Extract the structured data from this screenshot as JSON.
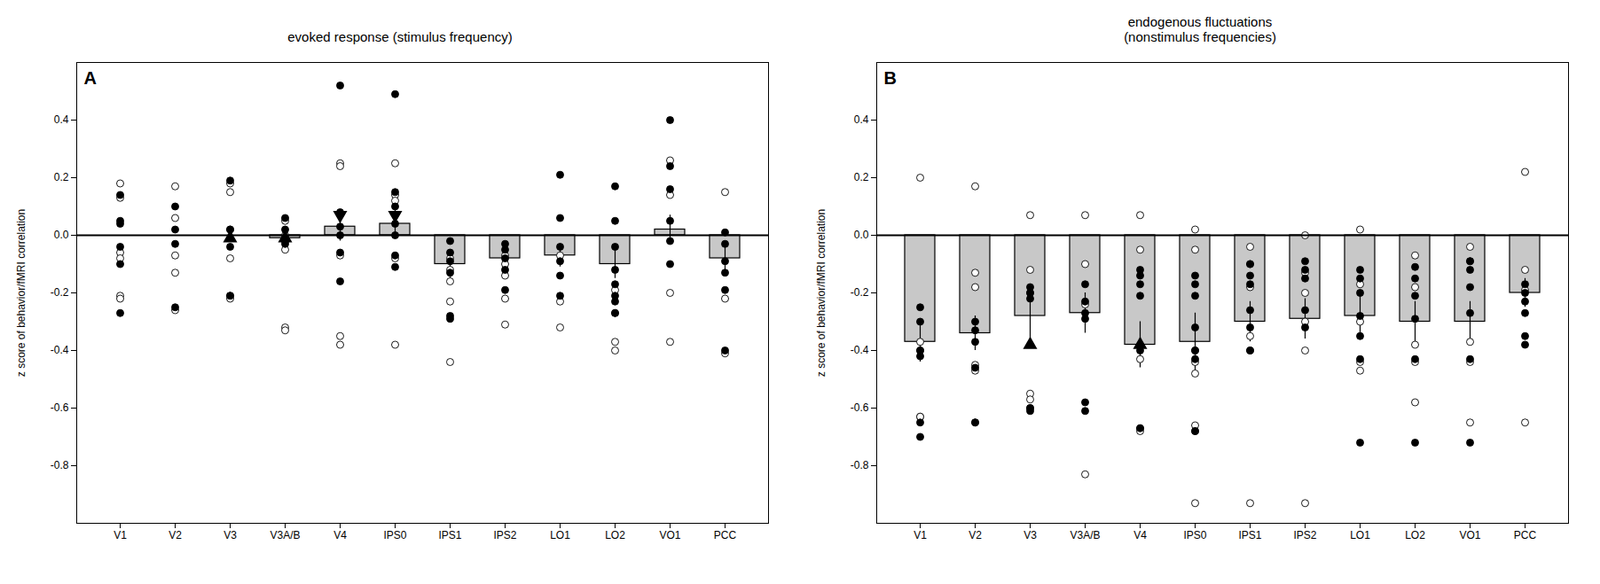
{
  "chart_data": [
    {
      "type": "bar",
      "title": "evoked response (stimulus frequency)",
      "annotations": [
        {
          "text": "A"
        }
      ],
      "y_label": "z score of behavior/fMRI correlation",
      "categories": [
        "V1",
        "V2",
        "V3",
        "V3A/B",
        "V4",
        "IPS0",
        "IPS1",
        "IPS2",
        "LO1",
        "LO2",
        "VO1",
        "PCC"
      ],
      "values": [
        null,
        null,
        null,
        -0.01,
        0.03,
        0.04,
        -0.1,
        -0.08,
        -0.07,
        -0.1,
        0.02,
        -0.08
      ],
      "errors": [
        null,
        null,
        null,
        0.04,
        0.05,
        0.05,
        0.05,
        0.04,
        0.04,
        0.05,
        0.05,
        0.04
      ],
      "color": "#c8c8c8",
      "ylim": [
        -1.0,
        0.6
      ],
      "yticks": [
        -0.8,
        -0.6,
        -0.4,
        -0.2,
        {
          "value": 0,
          "label": "0.0"
        },
        0.2,
        0.4
      ],
      "open_dots": {
        "V1": [
          0.18,
          0.13,
          -0.06,
          -0.08,
          -0.21,
          -0.22
        ],
        "V2": [
          0.17,
          0.06,
          -0.07,
          -0.13,
          -0.26
        ],
        "V3": [
          0.18,
          0.15,
          0.02,
          -0.08,
          -0.21,
          -0.22
        ],
        "V3A/B": [
          0.05,
          0.0,
          -0.05,
          -0.32,
          -0.33
        ],
        "V4": [
          0.25,
          0.24,
          -0.07,
          -0.35,
          -0.38
        ],
        "IPS0": [
          0.25,
          0.14,
          0.12,
          -0.08,
          -0.38
        ],
        "IPS1": [
          -0.08,
          -0.12,
          -0.16,
          -0.23,
          -0.44
        ],
        "IPS2": [
          -0.07,
          -0.1,
          -0.14,
          -0.22,
          -0.31
        ],
        "LO1": [
          -0.07,
          -0.23,
          -0.32
        ],
        "LO2": [
          -0.19,
          -0.27,
          -0.37,
          -0.4
        ],
        "VO1": [
          0.26,
          0.14,
          -0.2,
          -0.37
        ],
        "PCC": [
          0.15,
          -0.22,
          -0.41
        ]
      },
      "filled_dots": {
        "V1": [
          0.14,
          0.05,
          0.04,
          -0.04,
          -0.1,
          -0.27
        ],
        "V2": [
          0.1,
          0.02,
          -0.03,
          -0.25
        ],
        "V3": [
          0.19,
          0.02,
          -0.04,
          -0.21
        ],
        "V3A/B": [
          0.06,
          0.02,
          -0.02,
          -0.03
        ],
        "V4": [
          0.52,
          0.08,
          0.03,
          0.0,
          -0.06,
          -0.16
        ],
        "IPS0": [
          0.49,
          0.15,
          0.1,
          0.04,
          0.0,
          -0.07,
          -0.11
        ],
        "IPS1": [
          -0.02,
          -0.06,
          -0.09,
          -0.13,
          -0.28,
          -0.29
        ],
        "IPS2": [
          -0.03,
          -0.05,
          -0.08,
          -0.12,
          -0.19
        ],
        "LO1": [
          0.21,
          0.06,
          -0.04,
          -0.09,
          -0.14,
          -0.21
        ],
        "LO2": [
          0.17,
          0.05,
          -0.04,
          -0.12,
          -0.17,
          -0.21,
          -0.23,
          -0.27
        ],
        "VO1": [
          0.4,
          0.24,
          0.16,
          0.05,
          -0.02,
          -0.1
        ],
        "PCC": [
          0.01,
          -0.03,
          -0.09,
          -0.13,
          -0.19,
          -0.4
        ]
      },
      "triangles_down": {
        "V4": [
          0.07
        ],
        "IPS0": [
          0.07
        ]
      },
      "triangles_up": {
        "V3": [
          -0.01
        ],
        "V3A/B": [
          -0.01
        ]
      }
    },
    {
      "type": "bar",
      "title": "endogenous fluctuations\n(nonstimulus frequencies)",
      "annotations": [
        {
          "text": "B"
        }
      ],
      "y_label": "z score of behavior/fMRI correlation",
      "categories": [
        "V1",
        "V2",
        "V3",
        "V3A/B",
        "V4",
        "IPS0",
        "IPS1",
        "IPS2",
        "LO1",
        "LO2",
        "VO1",
        "PCC"
      ],
      "values": [
        -0.37,
        -0.34,
        -0.28,
        -0.27,
        -0.38,
        -0.37,
        -0.3,
        -0.29,
        -0.28,
        -0.3,
        -0.3,
        -0.2
      ],
      "errors": [
        0.07,
        0.06,
        0.1,
        0.07,
        0.08,
        0.1,
        0.07,
        0.07,
        0.07,
        0.07,
        0.07,
        0.05
      ],
      "color": "#c8c8c8",
      "ylim": [
        -1.0,
        0.6
      ],
      "yticks": [
        -0.8,
        -0.6,
        -0.4,
        -0.2,
        {
          "value": 0,
          "label": "0.0"
        },
        0.2,
        0.4
      ],
      "open_dots": {
        "V1": [
          0.2,
          -0.37,
          -0.4,
          -0.63,
          -0.63
        ],
        "V2": [
          0.17,
          -0.13,
          -0.18,
          -0.45,
          -0.47,
          -0.65
        ],
        "V3": [
          0.07,
          -0.12,
          -0.2,
          -0.55,
          -0.57,
          -0.6
        ],
        "V3A/B": [
          0.07,
          -0.1,
          -0.24,
          -0.83
        ],
        "V4": [
          0.07,
          -0.05,
          -0.43,
          -0.67,
          -0.68
        ],
        "IPS0": [
          0.02,
          -0.05,
          -0.4,
          -0.44,
          -0.48,
          -0.66,
          -0.68,
          -0.93
        ],
        "IPS1": [
          -0.04,
          -0.1,
          -0.18,
          -0.35,
          -0.4,
          -0.93
        ],
        "IPS2": [
          0.0,
          -0.13,
          -0.2,
          -0.3,
          -0.4,
          -0.93
        ],
        "LO1": [
          0.02,
          -0.17,
          -0.3,
          -0.44,
          -0.47
        ],
        "LO2": [
          -0.07,
          -0.18,
          -0.38,
          -0.44,
          -0.58
        ],
        "VO1": [
          -0.04,
          -0.09,
          -0.37,
          -0.44,
          -0.65
        ],
        "PCC": [
          0.22,
          -0.12,
          -0.19,
          -0.65
        ]
      },
      "filled_dots": {
        "V1": [
          -0.25,
          -0.3,
          -0.4,
          -0.42,
          -0.65,
          -0.7
        ],
        "V2": [
          -0.3,
          -0.33,
          -0.37,
          -0.46,
          -0.65
        ],
        "V3": [
          -0.18,
          -0.2,
          -0.22,
          -0.6,
          -0.61
        ],
        "V3A/B": [
          -0.17,
          -0.23,
          -0.27,
          -0.29,
          -0.58,
          -0.61
        ],
        "V4": [
          -0.12,
          -0.14,
          -0.17,
          -0.21,
          -0.4,
          -0.67
        ],
        "IPS0": [
          -0.14,
          -0.17,
          -0.21,
          -0.32,
          -0.4,
          -0.43,
          -0.68
        ],
        "IPS1": [
          -0.1,
          -0.14,
          -0.17,
          -0.26,
          -0.32,
          -0.4
        ],
        "IPS2": [
          -0.09,
          -0.12,
          -0.15,
          -0.26,
          -0.32
        ],
        "LO1": [
          -0.12,
          -0.15,
          -0.2,
          -0.28,
          -0.35,
          -0.43,
          -0.72
        ],
        "LO2": [
          -0.11,
          -0.15,
          -0.21,
          -0.29,
          -0.43,
          -0.72
        ],
        "VO1": [
          -0.09,
          -0.12,
          -0.18,
          -0.27,
          -0.43,
          -0.72
        ],
        "PCC": [
          -0.17,
          -0.2,
          -0.23,
          -0.27,
          -0.35,
          -0.38
        ]
      },
      "triangles_up": {
        "V3": [
          -0.38
        ],
        "V4": [
          -0.38
        ]
      }
    }
  ]
}
